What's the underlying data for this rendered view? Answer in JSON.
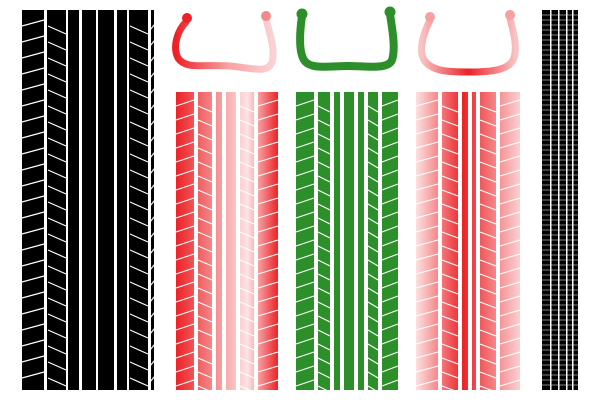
{
  "colors": {
    "background": "#ffffff",
    "black": "#000000",
    "white": "#ffffff",
    "red": "#ec2227",
    "red_light": "#f8b0b1",
    "pink": "#f7a6a8",
    "green": "#2c8f2a",
    "green_dark": "#1d7a1c"
  },
  "illustration": {
    "kind": "tire-tread-pattern-illustration",
    "panels": [
      {
        "id": "black-large",
        "style": "black",
        "has_cross_section": false
      },
      {
        "id": "red-pink",
        "style": "red-gradient",
        "has_cross_section": true,
        "cross_section_color": "red-gradient"
      },
      {
        "id": "green",
        "style": "green",
        "has_cross_section": true,
        "cross_section_color": "green"
      },
      {
        "id": "pink-red",
        "style": "pink-gradient",
        "has_cross_section": true,
        "cross_section_color": "pink-gradient"
      },
      {
        "id": "black-thin",
        "style": "black-dense",
        "has_cross_section": false
      }
    ]
  }
}
